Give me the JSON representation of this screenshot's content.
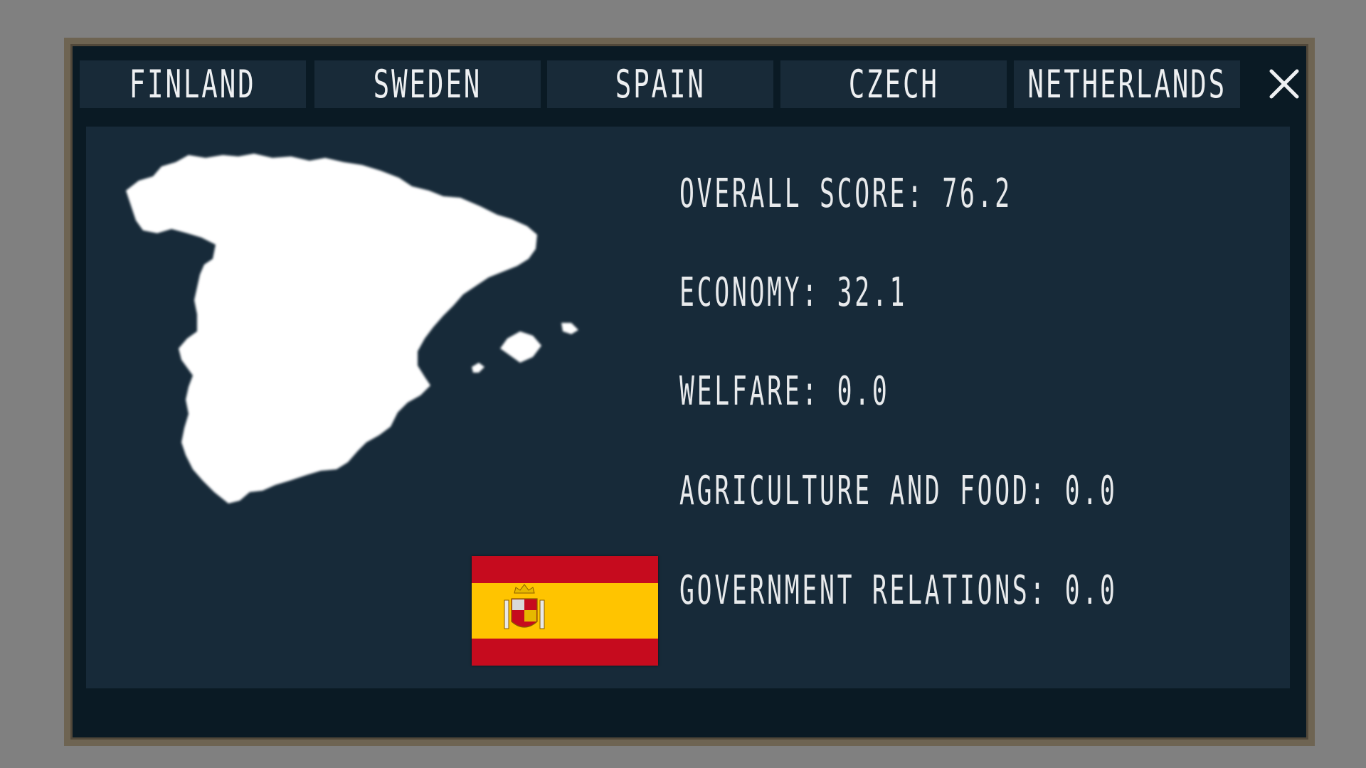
{
  "tabs": [
    {
      "label": "FINLAND"
    },
    {
      "label": "SWEDEN"
    },
    {
      "label": "SPAIN"
    },
    {
      "label": "CZECH"
    },
    {
      "label": "NETHERLANDS"
    }
  ],
  "close_icon": "close-icon",
  "country": {
    "map_icon": "spain-map",
    "flag_icon": "spain-flag",
    "flag_colors": {
      "red": "#c60b1e",
      "yellow": "#ffc400"
    }
  },
  "stats": {
    "overall": "OVERALL SCORE: 76.2",
    "economy": "ECONOMY: 32.1",
    "welfare": "WELFARE: 0.0",
    "agriculture": "AGRICULTURE AND FOOD: 0.0",
    "government": "GOVERNMENT RELATIONS: 0.0"
  },
  "colors": {
    "background": "#808080",
    "frame": "#6e6452",
    "window": "#0a1a24",
    "panel": "#172a39",
    "tab": "#182a38",
    "text": "#eef0f2"
  }
}
